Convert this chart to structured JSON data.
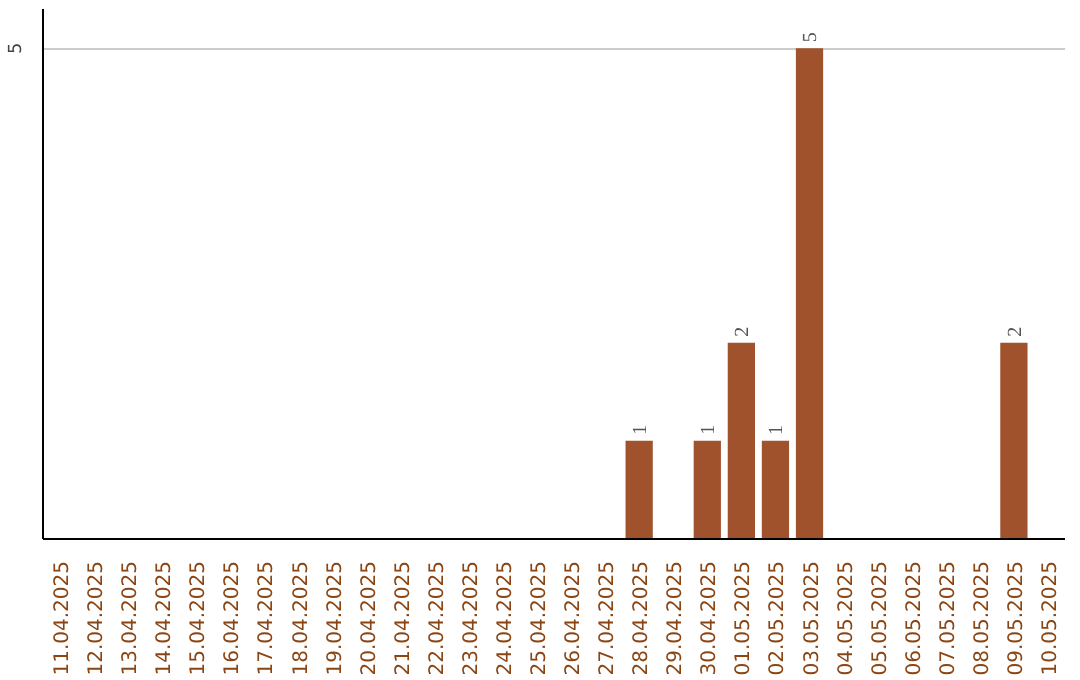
{
  "chart_data": {
    "type": "bar",
    "categories": [
      "11.04.2025",
      "12.04.2025",
      "13.04.2025",
      "14.04.2025",
      "15.04.2025",
      "16.04.2025",
      "17.04.2025",
      "18.04.2025",
      "19.04.2025",
      "20.04.2025",
      "21.04.2025",
      "22.04.2025",
      "23.04.2025",
      "24.04.2025",
      "25.04.2025",
      "26.04.2025",
      "27.04.2025",
      "28.04.2025",
      "29.04.2025",
      "30.04.2025",
      "01.05.2025",
      "02.05.2025",
      "03.05.2025",
      "04.05.2025",
      "05.05.2025",
      "06.05.2025",
      "07.05.2025",
      "08.05.2025",
      "09.05.2025",
      "10.05.2025"
    ],
    "values": [
      null,
      null,
      null,
      null,
      null,
      null,
      null,
      null,
      null,
      null,
      null,
      null,
      null,
      null,
      null,
      null,
      null,
      1,
      null,
      1,
      2,
      1,
      5,
      null,
      null,
      null,
      null,
      null,
      2,
      null
    ],
    "data_labels": true,
    "color": "#a0522d",
    "ylim": [
      0,
      5.4
    ],
    "yticks": [
      5
    ],
    "grid": "y"
  }
}
